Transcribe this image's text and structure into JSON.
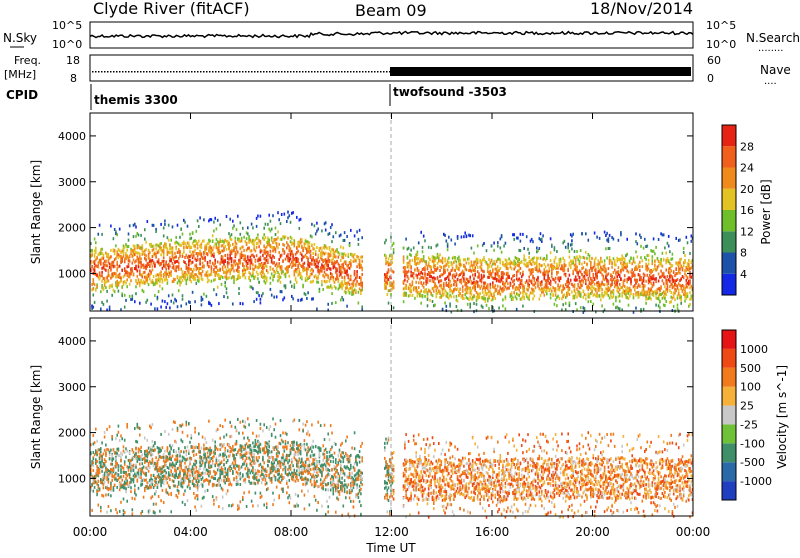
{
  "header": {
    "station": "Clyde River (fitACF)",
    "beam": "Beam 09",
    "date": "18/Nov/2014"
  },
  "side_labels": {
    "nsky": "N.Sky",
    "nsearch": "N.Search",
    "nsearch_dots": "........",
    "freq": "Freq.",
    "freq_unit": "[MHz]",
    "nave": "Nave",
    "nave_dots": "....",
    "cpid": "CPID"
  },
  "noise_axis": {
    "left_top": "10^5",
    "left_bottom": "10^0",
    "right_top": "10^5",
    "right_bottom": "10^0"
  },
  "freq_axis": {
    "top": "18",
    "bottom": "8",
    "nave_top": "60",
    "nave_bottom": "0"
  },
  "cpid_labels": [
    "themis 3300",
    "twofsound -3503"
  ],
  "colors": {
    "power_scale": [
      "#1428e6",
      "#1c52a8",
      "#3d8f5a",
      "#6fbf2b",
      "#e3c224",
      "#f08a1c",
      "#f0601c",
      "#e62414"
    ],
    "velocity_scale": [
      "#1f3fc0",
      "#2b6aa8",
      "#3f8f6a",
      "#6fc238",
      "#c8c8c8",
      "#f5b13a",
      "#f07a1c",
      "#f04a14",
      "#e61414"
    ]
  },
  "chart_data": {
    "type": "heatmap",
    "panels": [
      {
        "name": "power",
        "ylabel": "Slant Range [km]",
        "ylim": [
          180,
          4500
        ],
        "yticks": [
          "1000",
          "2000",
          "3000",
          "4000"
        ],
        "colorbar_label": "Power [dB]",
        "colorbar_ticks": [
          "4",
          "8",
          "12",
          "16",
          "20",
          "24",
          "28"
        ],
        "series": [
          {
            "x": [
              "00:00",
              "04:00",
              "08:00",
              "10:30",
              "12:00",
              "16:00",
              "20:00",
              "24:00"
            ],
            "y_center_km": [
              1100,
              1300,
              1400,
              1000,
              1000,
              900,
              950,
              900
            ]
          }
        ]
      },
      {
        "name": "velocity",
        "ylabel": "Slant Range [km]",
        "ylim": [
          180,
          4500
        ],
        "yticks": [
          "1000",
          "2000",
          "3000",
          "4000"
        ],
        "colorbar_label": "Velocity [m s^-1]",
        "colorbar_ticks": [
          "1000",
          "500",
          "100",
          "25",
          "-25",
          "-100",
          "-500",
          "-1000"
        ],
        "series": [
          {
            "x": [
              "00:00",
              "04:00",
              "08:00",
              "10:30",
              "12:00",
              "16:00",
              "20:00",
              "24:00"
            ],
            "y_center_km": [
              1200,
              1300,
              1400,
              1100,
              1000,
              1000,
              1050,
              1000
            ]
          }
        ]
      }
    ],
    "x_ticks": [
      "00:00",
      "04:00",
      "08:00",
      "12:00",
      "16:00",
      "20:00",
      "00:00"
    ],
    "xlabel": "Time UT",
    "x_range": [
      "00:00",
      "24:00"
    ]
  }
}
